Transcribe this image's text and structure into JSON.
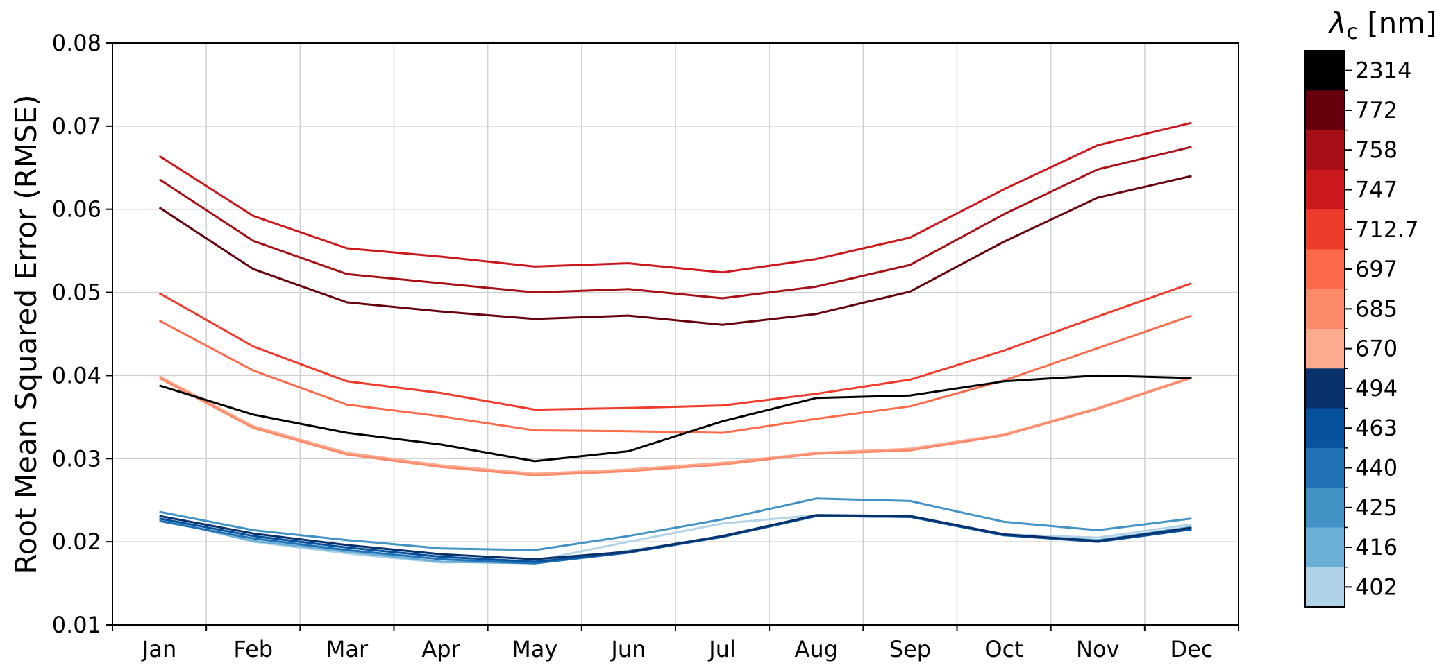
{
  "chart_data": {
    "type": "line",
    "ylabel": "Root Mean Squared Error (RMSE)",
    "xlabel": "",
    "ylim": [
      0.01,
      0.08
    ],
    "yticks": [
      "0.01",
      "0.02",
      "0.03",
      "0.04",
      "0.05",
      "0.06",
      "0.07",
      "0.08"
    ],
    "categories": [
      "Jan",
      "Feb",
      "Mar",
      "Apr",
      "May",
      "Jun",
      "Jul",
      "Aug",
      "Sep",
      "Oct",
      "Nov",
      "Dec"
    ],
    "grid": true,
    "colorbar": {
      "title_symbol": "λ",
      "title_sub": "c",
      "title_unit": " [nm]",
      "labels": [
        "2314",
        "772",
        "758",
        "747",
        "712.7",
        "697",
        "685",
        "670",
        "494",
        "463",
        "440",
        "425",
        "416",
        "402"
      ],
      "colors": [
        "#000000",
        "#67000d",
        "#a50f15",
        "#cb181d",
        "#ef3b2c",
        "#fb6a4a",
        "#fc8a6a",
        "#fcab8f",
        "#08306b",
        "#08519c",
        "#2171b5",
        "#4292c6",
        "#6baed6",
        "#b2d2e8"
      ]
    },
    "series": [
      {
        "label": "2314",
        "color": "#000000",
        "values": [
          0.0388,
          0.0353,
          0.0331,
          0.0317,
          0.0297,
          0.0309,
          0.0345,
          0.0373,
          0.0376,
          0.0393,
          0.04,
          0.0397
        ]
      },
      {
        "label": "772",
        "color": "#67000d",
        "values": [
          0.0602,
          0.0528,
          0.0488,
          0.0477,
          0.0468,
          0.0472,
          0.0461,
          0.0474,
          0.0501,
          0.0561,
          0.0614,
          0.064
        ]
      },
      {
        "label": "758",
        "color": "#a50f15",
        "values": [
          0.0636,
          0.0562,
          0.0522,
          0.0511,
          0.05,
          0.0504,
          0.0493,
          0.0507,
          0.0533,
          0.0594,
          0.0648,
          0.0675
        ]
      },
      {
        "label": "747",
        "color": "#cb181d",
        "values": [
          0.0664,
          0.0592,
          0.0553,
          0.0543,
          0.0531,
          0.0535,
          0.0524,
          0.054,
          0.0566,
          0.0624,
          0.0677,
          0.0704
        ]
      },
      {
        "label": "712.7",
        "color": "#ef3b2c",
        "values": [
          0.0499,
          0.0435,
          0.0393,
          0.0379,
          0.0359,
          0.0361,
          0.0364,
          0.0378,
          0.0395,
          0.043,
          0.0471,
          0.0511
        ]
      },
      {
        "label": "697",
        "color": "#fb6a4a",
        "values": [
          0.0466,
          0.0406,
          0.0365,
          0.0351,
          0.0334,
          0.0333,
          0.0331,
          0.0348,
          0.0363,
          0.0394,
          0.0433,
          0.0472
        ]
      },
      {
        "label": "685",
        "color": "#fc8a6a",
        "values": [
          0.0397,
          0.0337,
          0.0305,
          0.029,
          0.028,
          0.0285,
          0.0293,
          0.0306,
          0.031,
          0.0328,
          0.036,
          0.0397
        ]
      },
      {
        "label": "670",
        "color": "#fcab8f",
        "values": [
          0.0399,
          0.0339,
          0.0307,
          0.0292,
          0.0282,
          0.0287,
          0.0295,
          0.0307,
          0.0312,
          0.0329,
          0.0361,
          0.0398
        ]
      },
      {
        "label": "494",
        "color": "#08306b",
        "values": [
          0.0231,
          0.021,
          0.0196,
          0.0185,
          0.0179,
          0.0188,
          0.0207,
          0.0232,
          0.0231,
          0.0209,
          0.0201,
          0.0217
        ]
      },
      {
        "label": "463",
        "color": "#08519c",
        "values": [
          0.0228,
          0.0207,
          0.0193,
          0.0182,
          0.0176,
          0.0187,
          0.0206,
          0.0231,
          0.023,
          0.0208,
          0.02,
          0.0215
        ]
      },
      {
        "label": "440",
        "color": "#2171b5",
        "values": [
          0.0225,
          0.0204,
          0.019,
          0.0179,
          0.0174,
          0.0187,
          0.0206,
          0.0231,
          0.023,
          0.0208,
          0.02,
          0.0215
        ]
      },
      {
        "label": "425",
        "color": "#4292c6",
        "values": [
          0.0236,
          0.0214,
          0.0202,
          0.0192,
          0.019,
          0.0207,
          0.0227,
          0.0252,
          0.0249,
          0.0224,
          0.0214,
          0.0228
        ]
      },
      {
        "label": "416",
        "color": "#6baed6",
        "values": [
          0.0227,
          0.0201,
          0.0188,
          0.0176,
          0.0174,
          0.0189,
          0.0206,
          0.0231,
          0.023,
          0.0208,
          0.0202,
          0.0218
        ]
      },
      {
        "label": "402",
        "color": "#b2d2e8",
        "values": [
          0.0228,
          0.02,
          0.0186,
          0.0175,
          0.0177,
          0.02,
          0.0222,
          0.0232,
          0.0231,
          0.0209,
          0.0205,
          0.0221
        ]
      }
    ]
  }
}
